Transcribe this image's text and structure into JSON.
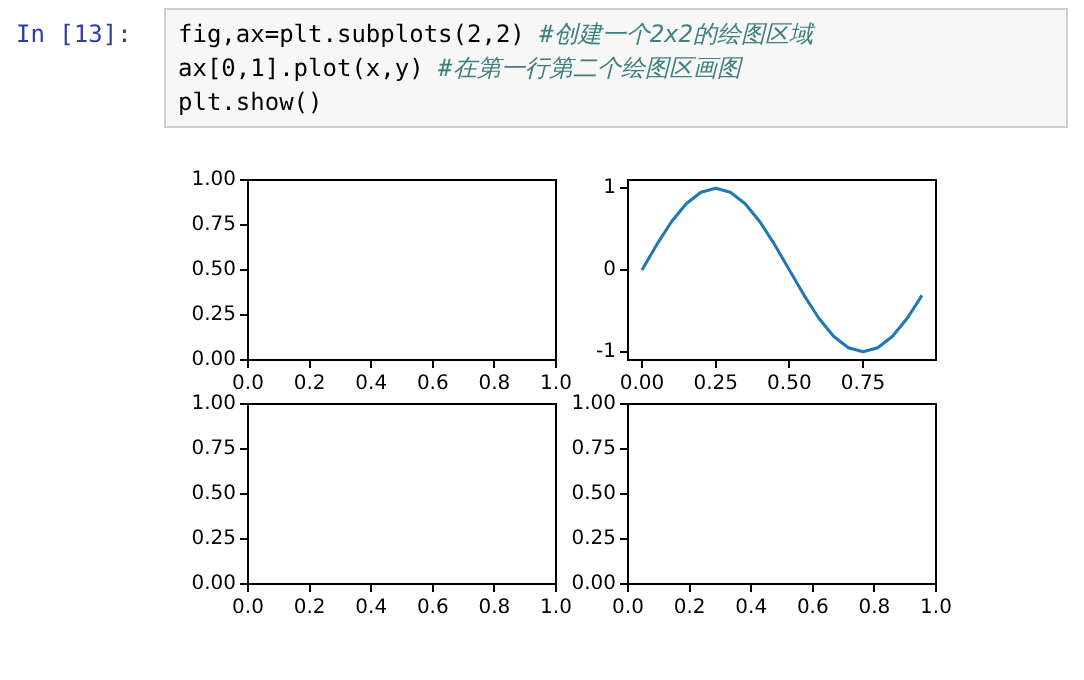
{
  "chart_data": [
    {
      "type": "other",
      "title": "In [13]:",
      "annotations": [
        "fig,ax=plt.subplots(2,2) #创建一个2x2的绘图区域",
        "ax[0,1].plot(x,y) #在第一行第二个绘图区画图",
        "plt.show()"
      ]
    },
    {
      "type": "line",
      "xlim": [
        0,
        1
      ],
      "ylim": [
        0,
        1
      ],
      "xticks": [
        {
          "value": 0,
          "label": "0.0"
        },
        {
          "value": 0.2,
          "label": "0.2"
        },
        {
          "value": 0.4,
          "label": "0.4"
        },
        {
          "value": 0.6,
          "label": "0.6"
        },
        {
          "value": 0.8,
          "label": "0.8"
        },
        {
          "value": 1,
          "label": "1.0"
        }
      ],
      "yticks": [
        {
          "value": 0,
          "label": "0.00"
        },
        {
          "value": 0.25,
          "label": "0.25"
        },
        {
          "value": 0.5,
          "label": "0.50"
        },
        {
          "value": 0.75,
          "label": "0.75"
        },
        {
          "value": 1,
          "label": "1.00"
        }
      ]
    },
    {
      "type": "line",
      "x": [
        0,
        0.05,
        0.1,
        0.15,
        0.2,
        0.25,
        0.3,
        0.35,
        0.4,
        0.45,
        0.5,
        0.55,
        0.6,
        0.65,
        0.7,
        0.75,
        0.8,
        0.85,
        0.9,
        0.95
      ],
      "series": [
        {
          "color": "#1f77b4",
          "values": [
            0,
            0.31,
            0.59,
            0.81,
            0.95,
            1,
            0.95,
            0.81,
            0.59,
            0.31,
            0,
            -0.31,
            -0.59,
            -0.81,
            -0.95,
            -1,
            -0.95,
            -0.81,
            -0.59,
            -0.31
          ]
        }
      ],
      "xlim": [
        -0.0475,
        0.9975
      ],
      "ylim": [
        -1.1,
        1.1
      ],
      "xticks": [
        {
          "value": 0,
          "label": "0.00"
        },
        {
          "value": 0.25,
          "label": "0.25"
        },
        {
          "value": 0.5,
          "label": "0.50"
        },
        {
          "value": 0.75,
          "label": "0.75"
        }
      ],
      "yticks": [
        -1,
        0,
        1
      ]
    },
    {
      "type": "line",
      "xlim": [
        0,
        1
      ],
      "ylim": [
        0,
        1
      ],
      "xticks": [
        {
          "value": 0,
          "label": "0.0"
        },
        {
          "value": 0.2,
          "label": "0.2"
        },
        {
          "value": 0.4,
          "label": "0.4"
        },
        {
          "value": 0.6,
          "label": "0.6"
        },
        {
          "value": 0.8,
          "label": "0.8"
        },
        {
          "value": 1,
          "label": "1.0"
        }
      ],
      "yticks": [
        {
          "value": 0,
          "label": "0.00"
        },
        {
          "value": 0.25,
          "label": "0.25"
        },
        {
          "value": 0.5,
          "label": "0.50"
        },
        {
          "value": 0.75,
          "label": "0.75"
        },
        {
          "value": 1,
          "label": "1.00"
        }
      ]
    },
    {
      "type": "line",
      "xlim": [
        0,
        1
      ],
      "ylim": [
        0,
        1
      ],
      "xticks": [
        {
          "value": 0,
          "label": "0.0"
        },
        {
          "value": 0.2,
          "label": "0.2"
        },
        {
          "value": 0.4,
          "label": "0.4"
        },
        {
          "value": 0.6,
          "label": "0.6"
        },
        {
          "value": 0.8,
          "label": "0.8"
        },
        {
          "value": 1,
          "label": "1.0"
        }
      ],
      "yticks": [
        {
          "value": 0,
          "label": "0.00"
        },
        {
          "value": 0.25,
          "label": "0.25"
        },
        {
          "value": 0.5,
          "label": "0.50"
        },
        {
          "value": 0.75,
          "label": "0.75"
        },
        {
          "value": 1,
          "label": "1.00"
        }
      ]
    }
  ]
}
